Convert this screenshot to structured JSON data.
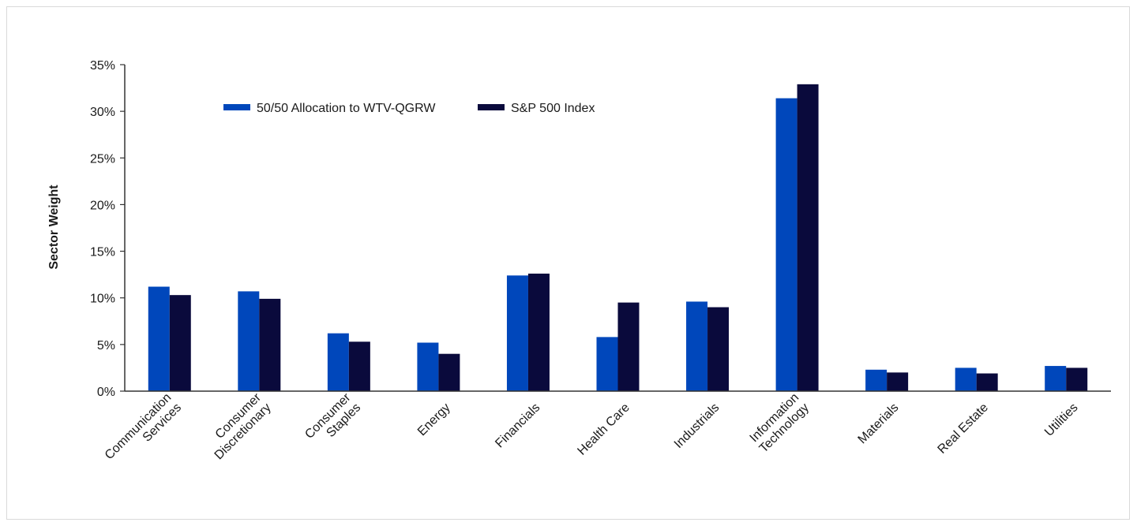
{
  "chart_data": {
    "type": "bar",
    "title": "",
    "xlabel": "",
    "ylabel": "Sector Weight",
    "ylim": [
      0,
      35
    ],
    "ytick_step": 5,
    "ytick_format": "percent",
    "grid": false,
    "legend_position": "top-left",
    "categories": [
      [
        "Communication",
        "Services"
      ],
      [
        "Consumer",
        "Discretionary"
      ],
      [
        "Consumer",
        "Staples"
      ],
      [
        "Energy"
      ],
      [
        "Financials"
      ],
      [
        "Health Care"
      ],
      [
        "Industrials"
      ],
      [
        "Information",
        "Technology"
      ],
      [
        "Materials"
      ],
      [
        "Real Estate"
      ],
      [
        "Utilities"
      ]
    ],
    "series": [
      {
        "name": "50/50 Allocation to WTV-QGRW",
        "color": "#0047bb",
        "values": [
          11.2,
          10.7,
          6.2,
          5.2,
          12.4,
          5.8,
          9.6,
          31.4,
          2.3,
          2.5,
          2.7
        ]
      },
      {
        "name": "S&P 500 Index",
        "color": "#0a0a3c",
        "values": [
          10.3,
          9.9,
          5.3,
          4.0,
          12.6,
          9.5,
          9.0,
          32.9,
          2.0,
          1.9,
          2.5
        ]
      }
    ]
  }
}
